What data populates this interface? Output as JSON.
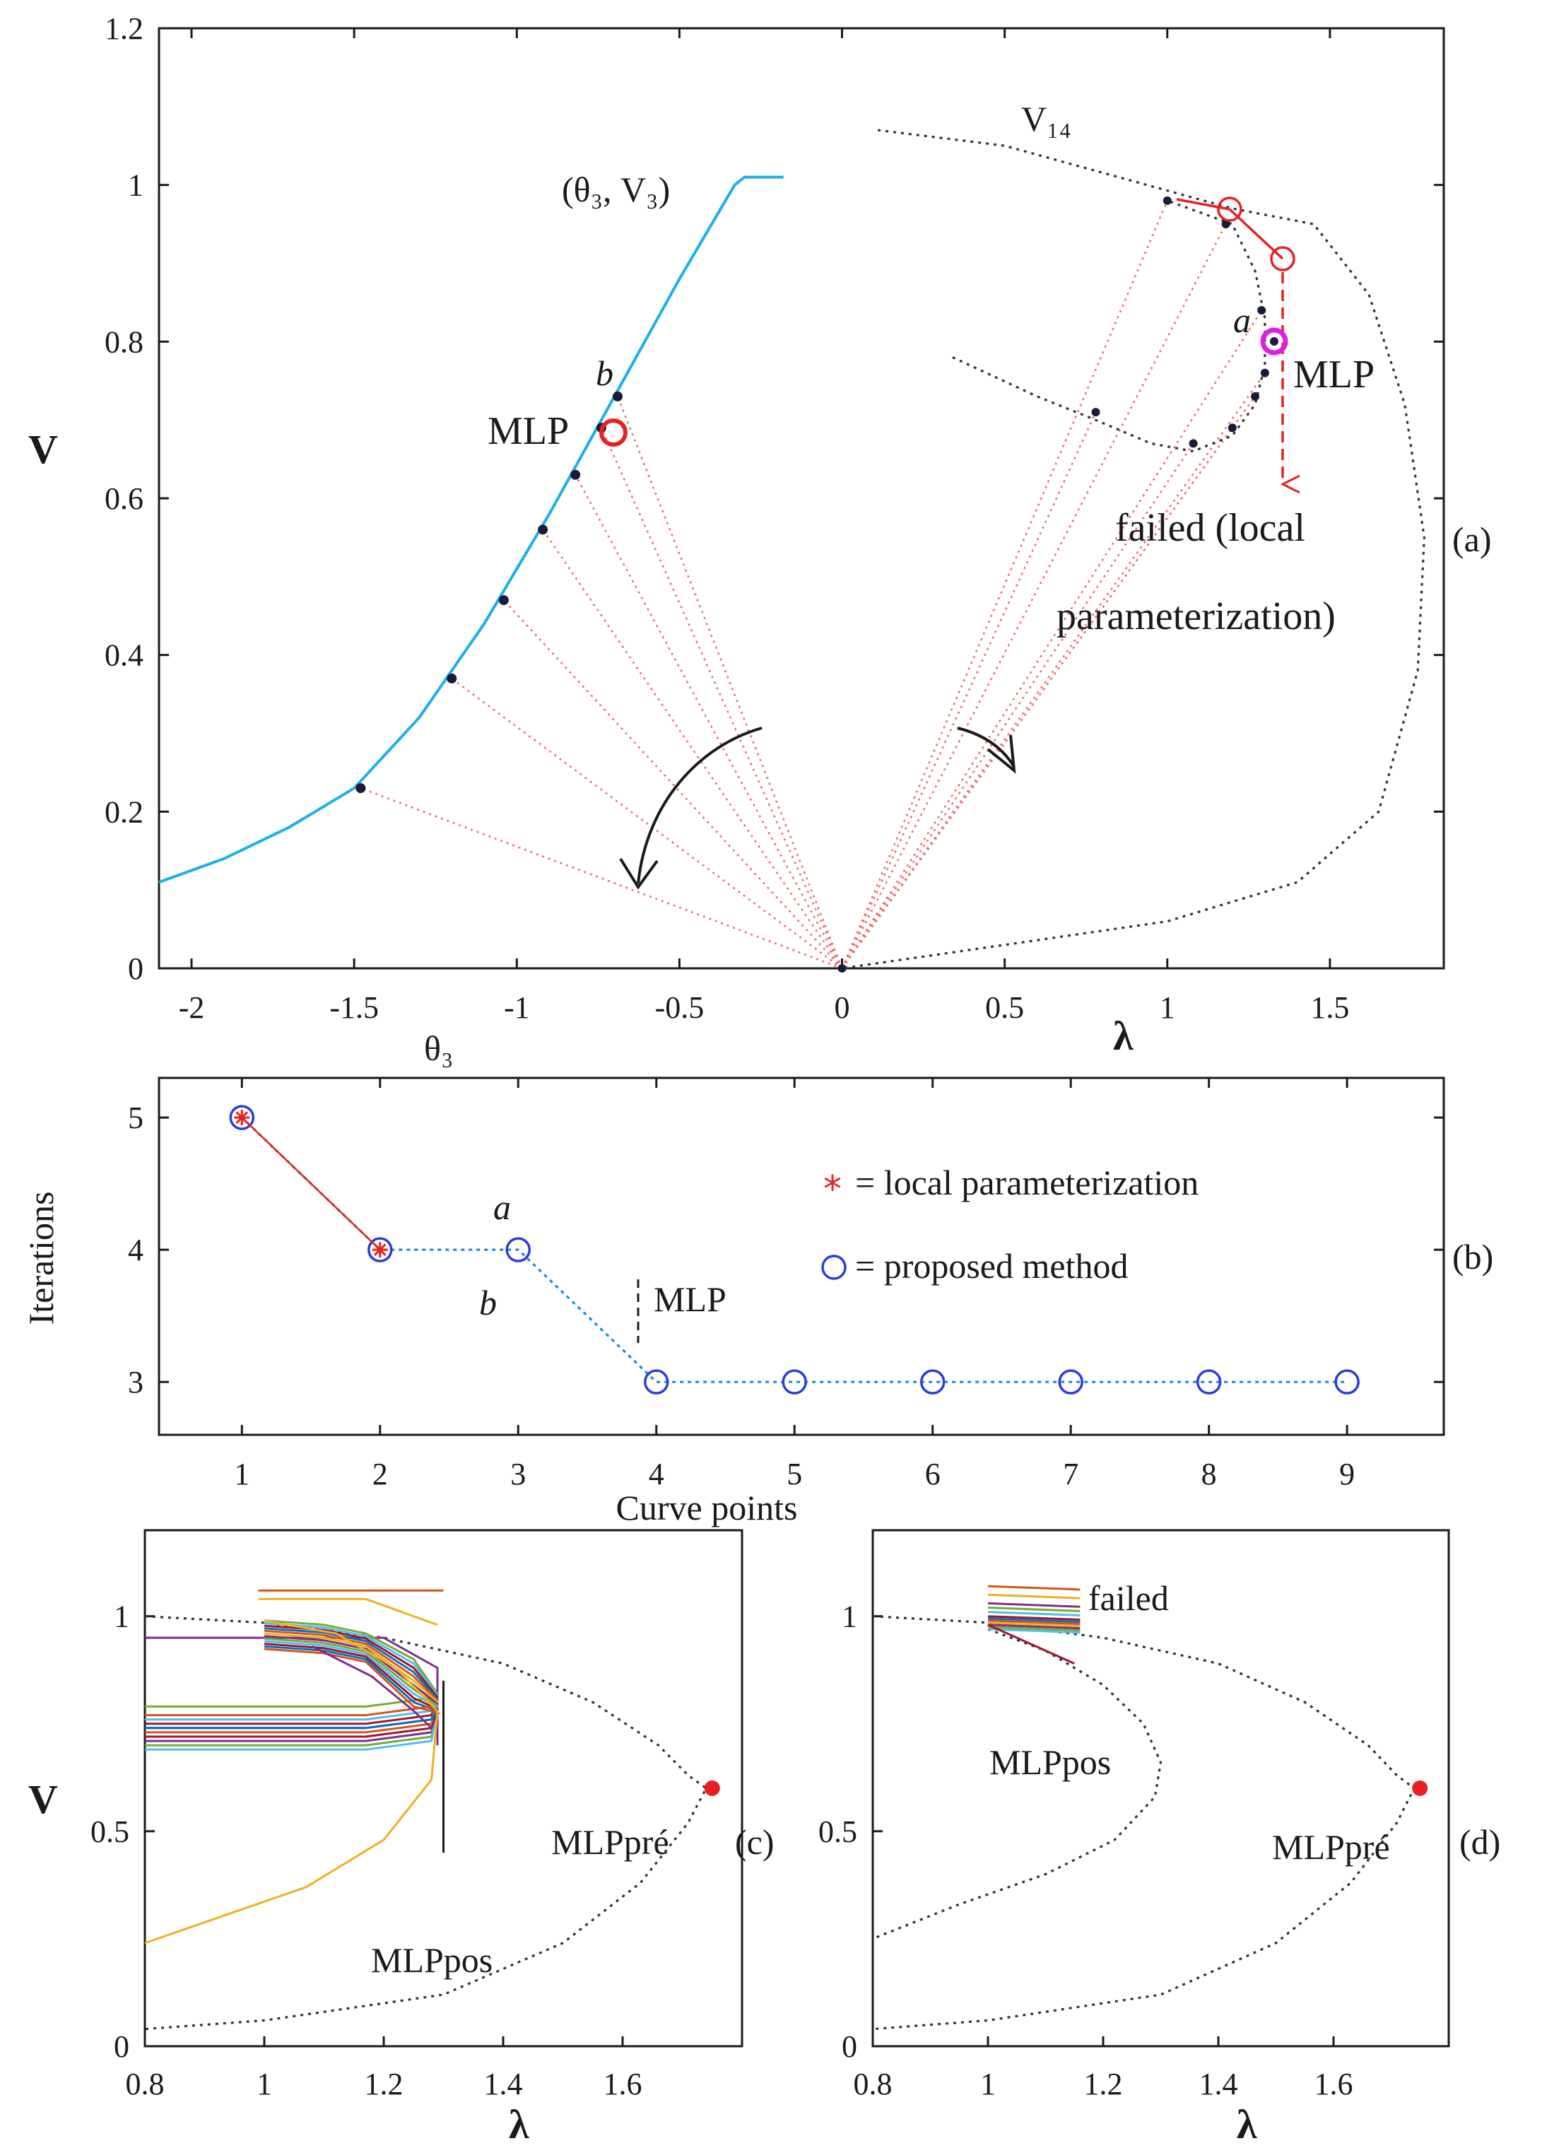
{
  "chart_data": [
    {
      "id": "a",
      "type": "line",
      "panel_label": "(a)",
      "ylabel": "V",
      "xlabel_left": "θ₃",
      "xlabel_right": "λ",
      "xlim": [
        -2.1,
        1.85
      ],
      "ylim": [
        0,
        1.2
      ],
      "x_ticks": [
        "-2",
        "-1.5",
        "-1",
        "-0.5",
        "0",
        "0.5",
        "1",
        "1.5"
      ],
      "y_ticks": [
        "0",
        "0.2",
        "0.4",
        "0.6",
        "0.8",
        "1",
        "1.2"
      ],
      "series": [
        {
          "name": "(θ₃, V₃)",
          "color": "#1ab0e8",
          "points": [
            [
              -2.1,
              0.11
            ],
            [
              -1.9,
              0.14
            ],
            [
              -1.7,
              0.18
            ],
            [
              -1.5,
              0.23
            ],
            [
              -1.3,
              0.32
            ],
            [
              -1.1,
              0.44
            ],
            [
              -0.9,
              0.58
            ],
            [
              -0.7,
              0.73
            ],
            [
              -0.5,
              0.88
            ],
            [
              -0.33,
              1.0
            ],
            [
              -0.3,
              1.01
            ],
            [
              -0.18,
              1.01
            ]
          ],
          "markers": [
            [
              -1.48,
              0.23
            ],
            [
              -1.2,
              0.37
            ],
            [
              -1.04,
              0.47
            ],
            [
              -0.92,
              0.56
            ],
            [
              -0.82,
              0.63
            ],
            [
              -0.74,
              0.69
            ],
            [
              -0.69,
              0.73
            ]
          ]
        },
        {
          "name": "V₁₄",
          "color": "#333333",
          "style": "dotted",
          "points": [
            [
              0.11,
              1.07
            ],
            [
              0.5,
              1.05
            ],
            [
              0.85,
              1.01
            ],
            [
              1.2,
              0.97
            ],
            [
              1.45,
              0.95
            ],
            [
              1.62,
              0.86
            ],
            [
              1.73,
              0.72
            ],
            [
              1.79,
              0.55
            ],
            [
              1.77,
              0.38
            ],
            [
              1.65,
              0.2
            ],
            [
              1.4,
              0.11
            ],
            [
              1.0,
              0.06
            ],
            [
              0.5,
              0.03
            ],
            [
              0.0,
              0.0
            ]
          ]
        },
        {
          "name": "local-parameterization path",
          "color": "#333333",
          "style": "dotted",
          "points": [
            [
              0.34,
              0.78
            ],
            [
              0.6,
              0.73
            ],
            [
              0.78,
              0.7
            ],
            [
              0.95,
              0.67
            ],
            [
              1.08,
              0.66
            ],
            [
              1.2,
              0.68
            ],
            [
              1.27,
              0.72
            ],
            [
              1.3,
              0.77
            ],
            [
              1.3,
              0.83
            ],
            [
              1.27,
              0.89
            ],
            [
              1.2,
              0.95
            ],
            [
              1.0,
              0.98
            ]
          ],
          "markers": [
            [
              0.78,
              0.71
            ],
            [
              1.08,
              0.67
            ],
            [
              1.2,
              0.69
            ],
            [
              1.27,
              0.73
            ],
            [
              1.3,
              0.76
            ],
            [
              1.29,
              0.84
            ],
            [
              1.18,
              0.95
            ],
            [
              1.0,
              0.98
            ]
          ]
        }
      ],
      "annotations": {
        "curve_label": "(θ₃, V₃)",
        "v14_label": "V₁₄",
        "mlp_left": "MLP",
        "mlp_right": "MLP",
        "label_a": "a",
        "label_b": "b",
        "failed_line1": "failed (local",
        "failed_line2": "parameterization)"
      }
    },
    {
      "id": "b",
      "type": "line",
      "panel_label": "(b)",
      "xlabel": "Curve points",
      "ylabel": "Iterations",
      "xlim": [
        0.4,
        9.7
      ],
      "ylim": [
        2.6,
        5.3
      ],
      "x_ticks": [
        "1",
        "2",
        "3",
        "4",
        "5",
        "6",
        "7",
        "8",
        "9"
      ],
      "y_ticks": [
        "3",
        "4",
        "5"
      ],
      "series": [
        {
          "name": "local parameterization",
          "color": "#e82020",
          "marker": "*",
          "x": [
            1,
            2
          ],
          "y": [
            5,
            4
          ]
        },
        {
          "name": "proposed method",
          "color": "#2a3ce0",
          "marker": "o",
          "x": [
            1,
            2,
            3,
            4,
            5,
            6,
            7,
            8,
            9
          ],
          "y": [
            5,
            4,
            4,
            3,
            3,
            3,
            3,
            3,
            3
          ]
        }
      ],
      "legend": {
        "local": "= local parameterization",
        "proposed": "= proposed method"
      },
      "annotations": {
        "label_a": "a",
        "label_b": "b",
        "mlp": "MLP"
      }
    },
    {
      "id": "c",
      "type": "line",
      "panel_label": "(c)",
      "xlabel": "λ",
      "ylabel": "V",
      "xlim": [
        0.8,
        1.8
      ],
      "ylim": [
        0,
        1.2
      ],
      "x_ticks": [
        "0.8",
        "1",
        "1.2",
        "1.4",
        "1.6"
      ],
      "y_ticks": [
        "0",
        "0.5",
        "1"
      ],
      "pv_curve": [
        [
          0.8,
          1.0
        ],
        [
          1.0,
          0.985
        ],
        [
          1.2,
          0.95
        ],
        [
          1.4,
          0.89
        ],
        [
          1.55,
          0.8
        ],
        [
          1.66,
          0.7
        ],
        [
          1.71,
          0.63
        ],
        [
          1.74,
          0.6
        ],
        [
          1.71,
          0.52
        ],
        [
          1.63,
          0.38
        ],
        [
          1.5,
          0.24
        ],
        [
          1.3,
          0.12
        ],
        [
          1.0,
          0.06
        ],
        [
          0.8,
          0.04
        ]
      ],
      "mlp_pre": [
        1.75,
        0.6
      ],
      "mlp_pre_label": "MLPpré",
      "mlp_pos_label": "MLPpos",
      "trajectory_colors": [
        "#d95319",
        "#edb120",
        "#7e2f8e",
        "#77ac30",
        "#4dbeee",
        "#a2142f",
        "#0072bd"
      ]
    },
    {
      "id": "d",
      "type": "line",
      "panel_label": "(d)",
      "xlabel": "λ",
      "ylabel": "",
      "xlim": [
        0.8,
        1.8
      ],
      "ylim": [
        0,
        1.2
      ],
      "x_ticks": [
        "0.8",
        "1",
        "1.2",
        "1.4",
        "1.6"
      ],
      "y_ticks": [
        "0",
        "0.5",
        "1"
      ],
      "pv_curve": [
        [
          0.8,
          1.0
        ],
        [
          1.0,
          0.985
        ],
        [
          1.2,
          0.95
        ],
        [
          1.4,
          0.89
        ],
        [
          1.55,
          0.8
        ],
        [
          1.66,
          0.7
        ],
        [
          1.71,
          0.63
        ],
        [
          1.74,
          0.6
        ],
        [
          1.71,
          0.52
        ],
        [
          1.63,
          0.38
        ],
        [
          1.5,
          0.24
        ],
        [
          1.3,
          0.12
        ],
        [
          1.0,
          0.06
        ],
        [
          0.8,
          0.04
        ]
      ],
      "inner_curve": [
        [
          1.0,
          0.97
        ],
        [
          1.1,
          0.92
        ],
        [
          1.2,
          0.84
        ],
        [
          1.27,
          0.75
        ],
        [
          1.3,
          0.66
        ],
        [
          1.29,
          0.58
        ],
        [
          1.22,
          0.48
        ],
        [
          1.1,
          0.4
        ],
        [
          0.95,
          0.33
        ],
        [
          0.8,
          0.25
        ]
      ],
      "mlp_pre": [
        1.75,
        0.6
      ],
      "mlp_pre_label": "MLPpré",
      "mlp_pos_label": "MLPpos",
      "failed_label": "failed",
      "trajectory_colors": [
        "#d95319",
        "#edb120",
        "#7e2f8e",
        "#77ac30",
        "#4dbeee",
        "#a2142f",
        "#0072bd"
      ]
    }
  ]
}
